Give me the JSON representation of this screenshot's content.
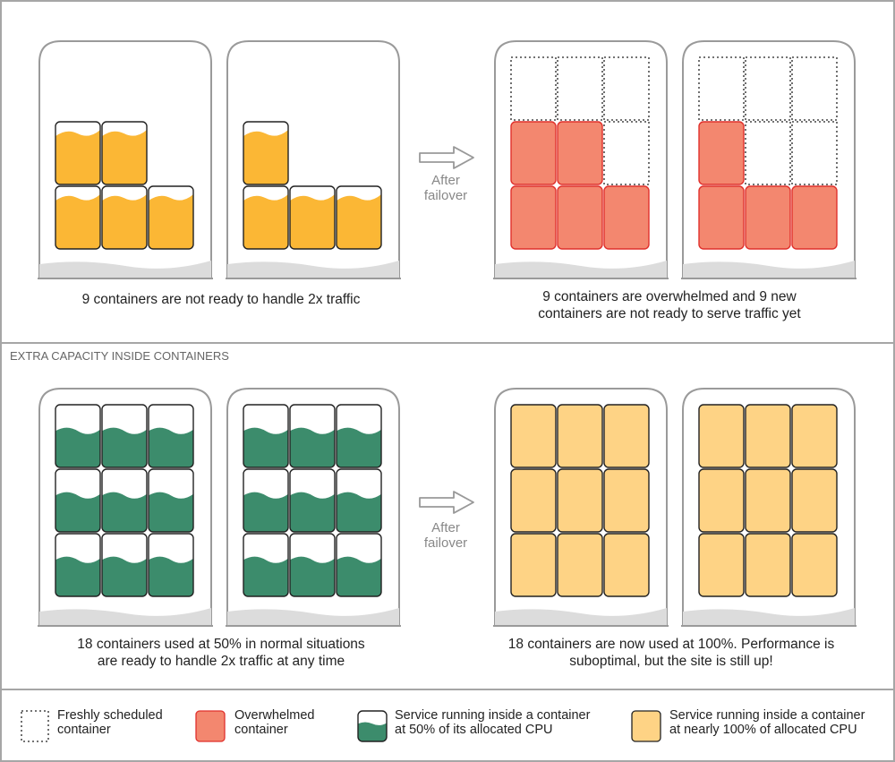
{
  "colors": {
    "border": "#a6a6a6",
    "host_outline": "#9a9a9a",
    "ground": "#dcdcdc",
    "yellow_fill": "#fbb735",
    "overwhelmed_fill": "#f3876f",
    "overwhelmed_stroke": "#e0302c",
    "green_fill": "#3c8c6c",
    "full_fill": "#fed385",
    "text": "#222222",
    "arrow": "#999999"
  },
  "sections": [
    {
      "header": "",
      "arrow_label_line1": "After",
      "arrow_label_line2": "failover",
      "before": {
        "caption_line1": "9 containers are not ready to handle 2x traffic",
        "caption_line2": "",
        "hosts": [
          {
            "cells": [
              [
                "empty",
                "empty",
                "empty"
              ],
              [
                "half-yellow",
                "half-yellow",
                "empty"
              ],
              [
                "half-yellow",
                "half-yellow",
                "half-yellow"
              ]
            ]
          },
          {
            "cells": [
              [
                "empty",
                "empty",
                "empty"
              ],
              [
                "half-yellow",
                "empty",
                "empty"
              ],
              [
                "half-yellow",
                "half-yellow",
                "half-yellow"
              ]
            ]
          }
        ]
      },
      "after": {
        "caption_line1": "9 containers are overwhelmed and 9 new",
        "caption_line2": "containers are not ready to serve traffic yet",
        "hosts": [
          {
            "cells": [
              [
                "fresh",
                "fresh",
                "fresh"
              ],
              [
                "overwhelmed",
                "overwhelmed",
                "fresh"
              ],
              [
                "overwhelmed",
                "overwhelmed",
                "overwhelmed"
              ]
            ]
          },
          {
            "cells": [
              [
                "fresh",
                "fresh",
                "fresh"
              ],
              [
                "overwhelmed",
                "fresh",
                "fresh"
              ],
              [
                "overwhelmed",
                "overwhelmed",
                "overwhelmed"
              ]
            ]
          }
        ]
      }
    },
    {
      "header": "EXTRA CAPACITY INSIDE CONTAINERS",
      "arrow_label_line1": "After",
      "arrow_label_line2": "failover",
      "before": {
        "caption_line1": "18 containers used at 50% in normal situations",
        "caption_line2": "are ready to handle 2x traffic at any time",
        "hosts": [
          {
            "cells": [
              [
                "half-green",
                "half-green",
                "half-green"
              ],
              [
                "half-green",
                "half-green",
                "half-green"
              ],
              [
                "half-green",
                "half-green",
                "half-green"
              ]
            ]
          },
          {
            "cells": [
              [
                "half-green",
                "half-green",
                "half-green"
              ],
              [
                "half-green",
                "half-green",
                "half-green"
              ],
              [
                "half-green",
                "half-green",
                "half-green"
              ]
            ]
          }
        ]
      },
      "after": {
        "caption_line1": "18 containers are now used at 100%. Performance is",
        "caption_line2": "suboptimal, but the site is still up!",
        "hosts": [
          {
            "cells": [
              [
                "full",
                "full",
                "full"
              ],
              [
                "full",
                "full",
                "full"
              ],
              [
                "full",
                "full",
                "full"
              ]
            ]
          },
          {
            "cells": [
              [
                "full",
                "full",
                "full"
              ],
              [
                "full",
                "full",
                "full"
              ],
              [
                "full",
                "full",
                "full"
              ]
            ]
          }
        ]
      }
    }
  ],
  "legend": [
    {
      "kind": "fresh",
      "line1": "Freshly scheduled",
      "line2": "container"
    },
    {
      "kind": "overwhelmed",
      "line1": "Overwhelmed",
      "line2": "container"
    },
    {
      "kind": "half-green",
      "line1": "Service running inside a container",
      "line2": "at 50% of its allocated CPU"
    },
    {
      "kind": "full",
      "line1": "Service running inside a container",
      "line2": "at nearly 100% of allocated CPU"
    }
  ]
}
